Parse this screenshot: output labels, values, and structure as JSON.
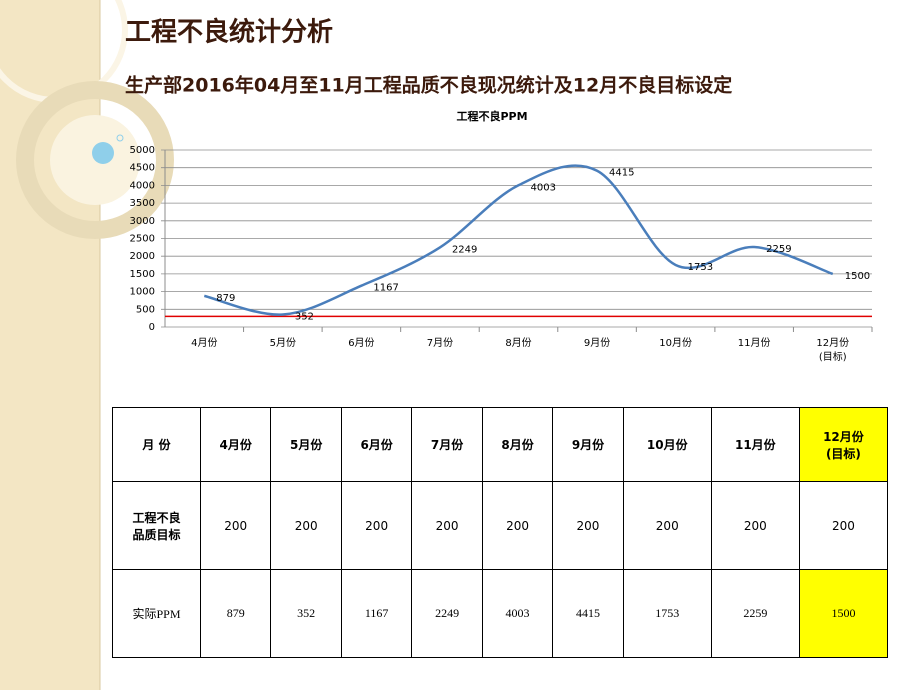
{
  "header": {
    "title": "工程不良统计分析",
    "subtitle": "生产部2016年04月至11月工程品质不良现况统计及12月不良目标设定"
  },
  "chart_data": {
    "type": "line",
    "title": "工程不良PPM",
    "categories": [
      "4月份",
      "5月份",
      "6月份",
      "7月份",
      "8月份",
      "9月份",
      "10月份",
      "11月份",
      "12月份\n(目标)"
    ],
    "values": [
      879,
      352,
      1167,
      2249,
      4003,
      4415,
      1753,
      2259,
      1500
    ],
    "color": "#4a7ebb",
    "smooth": true,
    "ylim": [
      0,
      5000
    ],
    "yticks": [
      0,
      500,
      1000,
      1500,
      2000,
      2500,
      3000,
      3500,
      4000,
      4500,
      5000
    ],
    "grid": true,
    "reference_line": {
      "value": 300,
      "color": "#e00000"
    }
  },
  "table": {
    "corner": "月 份",
    "highlight_color": "#ffff00",
    "rows": [
      {
        "label": "工程不良\n品质目标",
        "values": [
          "200",
          "200",
          "200",
          "200",
          "200",
          "200",
          "200",
          "200",
          "200"
        ]
      },
      {
        "label": "实际PPM"
      }
    ]
  }
}
